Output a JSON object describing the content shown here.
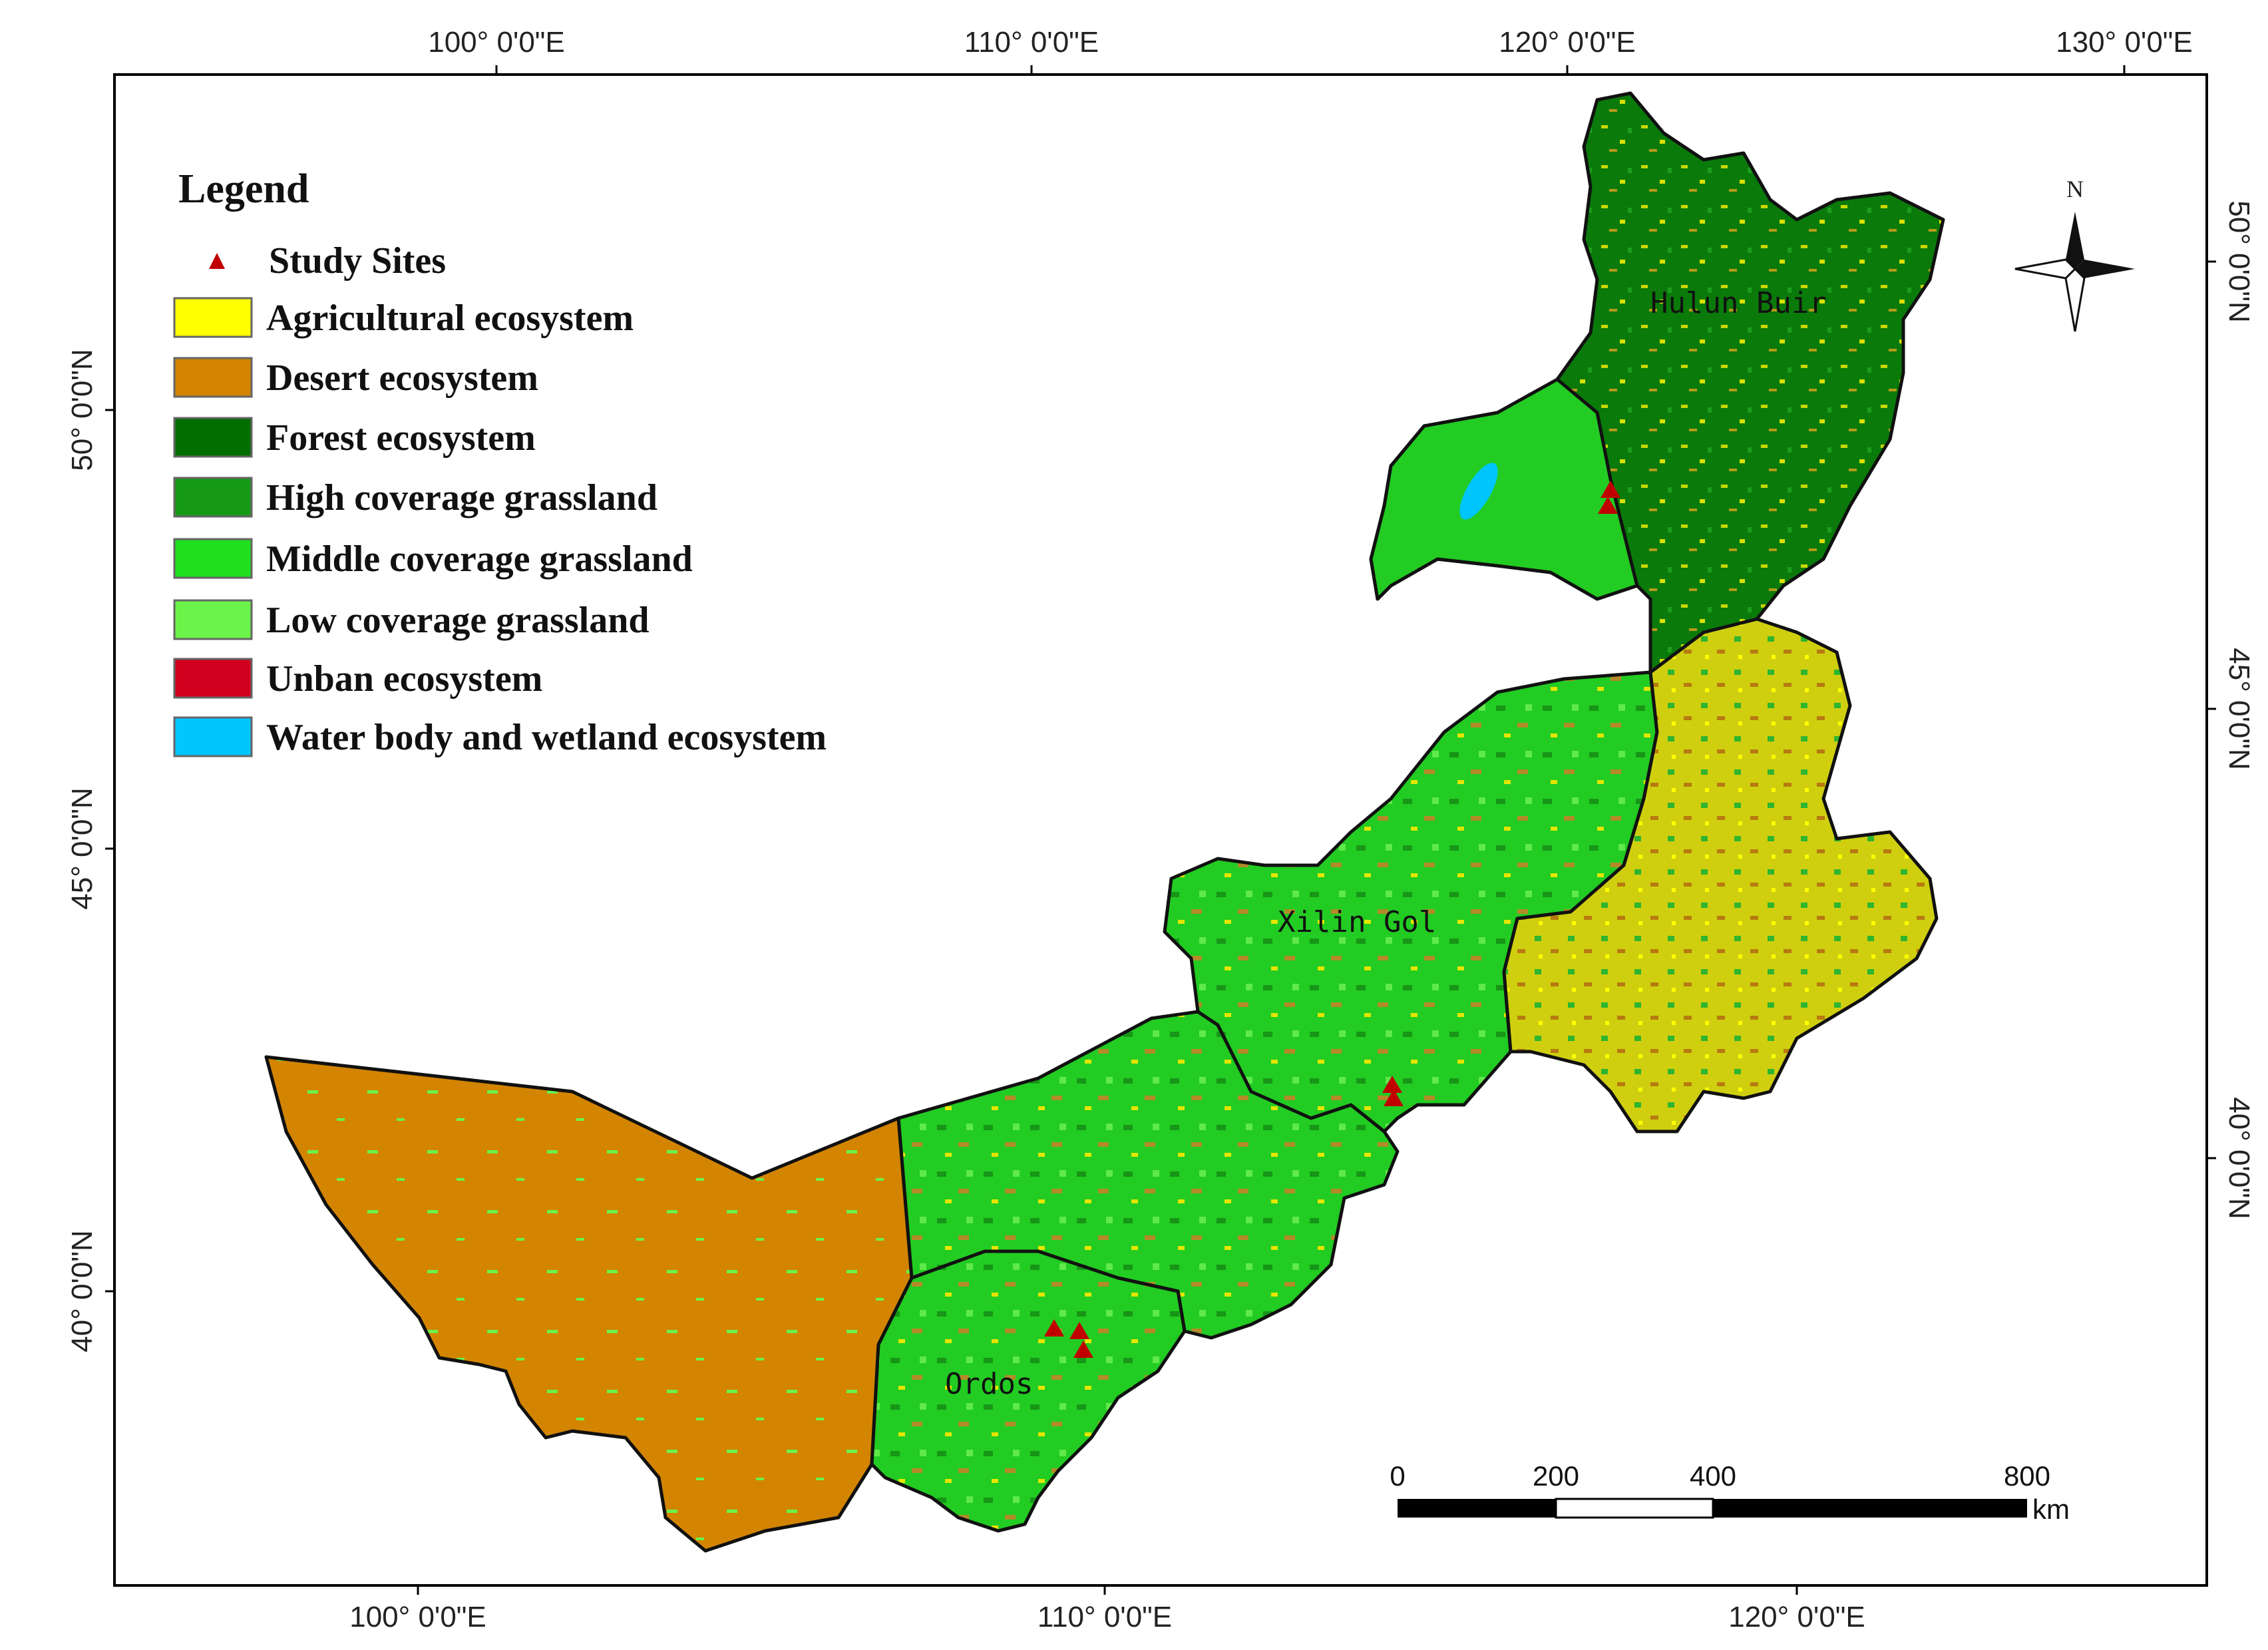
{
  "map": {
    "top_lon_labels": [
      "100° 0'0\"E",
      "110° 0'0\"E",
      "120° 0'0\"E",
      "130° 0'0\"E"
    ],
    "bottom_lon_labels": [
      "100° 0'0\"E",
      "110° 0'0\"E",
      "120° 0'0\"E"
    ],
    "left_lat_labels": [
      "50° 0'0\"N",
      "45° 0'0\"N",
      "40° 0'0\"N"
    ],
    "right_lat_labels": [
      "50° 0'0\"N",
      "45° 0'0\"N",
      "40° 0'0\"N"
    ],
    "regions": [
      "Hulun Buir",
      "Xilin Gol",
      "Ordos"
    ],
    "north_label": "N",
    "colors": {
      "agricultural": "#ffff00",
      "desert": "#d38400",
      "forest": "#006e00",
      "high_grass": "#169a16",
      "middle_grass": "#1fe01f",
      "low_grass": "#6cf34a",
      "urban": "#d1001f",
      "water": "#00c5ff",
      "site": "#c00000"
    }
  },
  "legend": {
    "title": "Legend",
    "items": [
      {
        "label": "Study Sites",
        "symbol": "triangle",
        "color": "#c00000"
      },
      {
        "label": "Agricultural ecosystem",
        "color": "#ffff00"
      },
      {
        "label": "Desert ecosystem",
        "color": "#d38400"
      },
      {
        "label": "Forest ecosystem",
        "color": "#006e00"
      },
      {
        "label": "High coverage grassland",
        "color": "#169a16"
      },
      {
        "label": "Middle coverage grassland",
        "color": "#1fe01f"
      },
      {
        "label": "Low coverage grassland",
        "color": "#6cf34a"
      },
      {
        "label": "Unban ecosystem",
        "color": "#d1001f"
      },
      {
        "label": "Water body and wetland ecosystem",
        "color": "#00c5ff"
      }
    ]
  },
  "scale_bar": {
    "labels": [
      "0",
      "200",
      "400",
      "800"
    ],
    "unit": "km"
  }
}
